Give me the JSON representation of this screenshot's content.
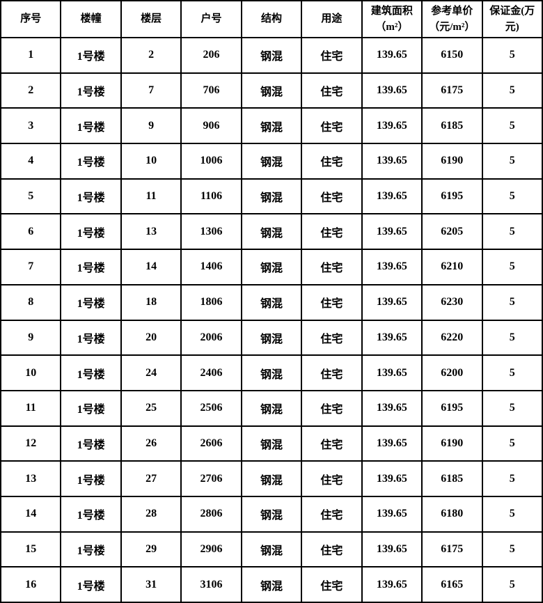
{
  "colors": {
    "border": "#000000",
    "background": "#ffffff",
    "text": "#000000"
  },
  "table": {
    "headers": [
      "序号",
      "楼幢",
      "楼层",
      "户号",
      "结构",
      "用途",
      "建筑面积\n（m²）",
      "参考单价\n（元/m²）",
      "保证金(万\n元)"
    ],
    "rows": [
      [
        "1",
        "1号楼",
        "2",
        "206",
        "钢混",
        "住宅",
        "139.65",
        "6150",
        "5"
      ],
      [
        "2",
        "1号楼",
        "7",
        "706",
        "钢混",
        "住宅",
        "139.65",
        "6175",
        "5"
      ],
      [
        "3",
        "1号楼",
        "9",
        "906",
        "钢混",
        "住宅",
        "139.65",
        "6185",
        "5"
      ],
      [
        "4",
        "1号楼",
        "10",
        "1006",
        "钢混",
        "住宅",
        "139.65",
        "6190",
        "5"
      ],
      [
        "5",
        "1号楼",
        "11",
        "1106",
        "钢混",
        "住宅",
        "139.65",
        "6195",
        "5"
      ],
      [
        "6",
        "1号楼",
        "13",
        "1306",
        "钢混",
        "住宅",
        "139.65",
        "6205",
        "5"
      ],
      [
        "7",
        "1号楼",
        "14",
        "1406",
        "钢混",
        "住宅",
        "139.65",
        "6210",
        "5"
      ],
      [
        "8",
        "1号楼",
        "18",
        "1806",
        "钢混",
        "住宅",
        "139.65",
        "6230",
        "5"
      ],
      [
        "9",
        "1号楼",
        "20",
        "2006",
        "钢混",
        "住宅",
        "139.65",
        "6220",
        "5"
      ],
      [
        "10",
        "1号楼",
        "24",
        "2406",
        "钢混",
        "住宅",
        "139.65",
        "6200",
        "5"
      ],
      [
        "11",
        "1号楼",
        "25",
        "2506",
        "钢混",
        "住宅",
        "139.65",
        "6195",
        "5"
      ],
      [
        "12",
        "1号楼",
        "26",
        "2606",
        "钢混",
        "住宅",
        "139.65",
        "6190",
        "5"
      ],
      [
        "13",
        "1号楼",
        "27",
        "2706",
        "钢混",
        "住宅",
        "139.65",
        "6185",
        "5"
      ],
      [
        "14",
        "1号楼",
        "28",
        "2806",
        "钢混",
        "住宅",
        "139.65",
        "6180",
        "5"
      ],
      [
        "15",
        "1号楼",
        "29",
        "2906",
        "钢混",
        "住宅",
        "139.65",
        "6175",
        "5"
      ],
      [
        "16",
        "1号楼",
        "31",
        "3106",
        "钢混",
        "住宅",
        "139.65",
        "6165",
        "5"
      ]
    ]
  }
}
